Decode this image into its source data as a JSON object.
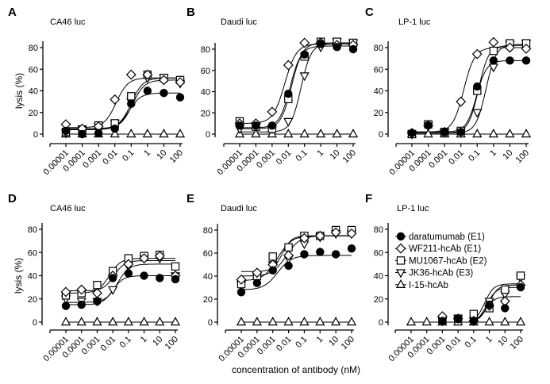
{
  "figure": {
    "x_axis_label": "concentration of antibody (nM)",
    "y_axis_label": "lysis (%)",
    "legend": [
      {
        "name": "daratumumab (E1)",
        "marker": "filled-circle"
      },
      {
        "name": "WF211-hcAb (E1)",
        "marker": "open-diamond"
      },
      {
        "name": "MU1067-hcAb (E2)",
        "marker": "open-square"
      },
      {
        "name": "JK36-hcAb (E3)",
        "marker": "open-triangle-down"
      },
      {
        "name": "I-15-hcAb",
        "marker": "open-triangle-up"
      }
    ],
    "colors": {
      "ink": "#000000",
      "fill": "#ffffff"
    }
  },
  "chart_data": [
    {
      "panel": "A",
      "title": "CA46 luc",
      "type": "scatter",
      "x_scale": "log",
      "ylim": [
        0,
        80
      ],
      "yticks": [
        0,
        20,
        40,
        60,
        80
      ],
      "x": [
        1e-05,
        0.0001,
        0.001,
        0.01,
        0.1,
        1,
        10,
        100
      ],
      "xtick_labels": [
        "0.00001",
        "0.0001",
        "0.001",
        "0.01",
        "0.1",
        "1",
        "10",
        "100"
      ],
      "series": [
        {
          "name": "daratumumab (E1)",
          "values": [
            3,
            0,
            1,
            5,
            28,
            40,
            38,
            34
          ],
          "fit": {
            "bottom": 4,
            "top": 38,
            "ec50": 0.07,
            "hill": 1.2
          }
        },
        {
          "name": "WF211-hcAb (E1)",
          "values": [
            9,
            5,
            7,
            32,
            55,
            55,
            50,
            48
          ],
          "fit": {
            "bottom": 6,
            "top": 52,
            "ec50": 0.012,
            "hill": 1.2
          }
        },
        {
          "name": "MU1067-hcAb (E2)",
          "values": [
            2,
            4,
            8,
            10,
            35,
            55,
            52,
            50
          ],
          "fit": {
            "bottom": 5,
            "top": 52,
            "ec50": 0.1,
            "hill": 1.2
          }
        },
        {
          "name": "JK36-hcAb (E3)",
          "values": [
            1,
            5,
            7,
            10,
            30,
            52,
            52,
            47
          ],
          "fit": {
            "bottom": 5,
            "top": 50,
            "ec50": 0.12,
            "hill": 1.2
          }
        },
        {
          "name": "I-15-hcAb",
          "values": [
            0,
            0,
            0,
            0,
            0,
            0,
            0,
            0
          ],
          "fit": {
            "bottom": 0,
            "top": 0,
            "ec50": 1,
            "hill": 1
          }
        }
      ]
    },
    {
      "panel": "B",
      "title": "Daudi luc",
      "type": "scatter",
      "x_scale": "log",
      "ylim": [
        0,
        80
      ],
      "yticks": [
        0,
        20,
        40,
        60,
        80
      ],
      "x": [
        1e-05,
        0.0001,
        0.001,
        0.01,
        0.1,
        1,
        10,
        100
      ],
      "xtick_labels": [
        "0.00001",
        "0.0001",
        "0.001",
        "0.01",
        "0.1",
        "1",
        "10",
        "100"
      ],
      "series": [
        {
          "name": "daratumumab (E1)",
          "values": [
            8,
            8,
            8,
            38,
            75,
            85,
            82,
            80
          ],
          "fit": {
            "bottom": 6,
            "top": 83,
            "ec50": 0.013,
            "hill": 1.3
          }
        },
        {
          "name": "WF211-hcAb (E1)",
          "values": [
            10,
            10,
            21,
            65,
            86,
            86,
            84,
            84
          ],
          "fit": {
            "bottom": 10,
            "top": 85,
            "ec50": 0.006,
            "hill": 1.2
          }
        },
        {
          "name": "MU1067-hcAb (E2)",
          "values": [
            12,
            7,
            5,
            33,
            73,
            87,
            87,
            86
          ],
          "fit": {
            "bottom": 5,
            "top": 86,
            "ec50": 0.016,
            "hill": 1.3
          }
        },
        {
          "name": "JK36-hcAb (E3)",
          "values": [
            5,
            8,
            5,
            12,
            55,
            82,
            87,
            86
          ],
          "fit": {
            "bottom": 2,
            "top": 85,
            "ec50": 0.06,
            "hill": 1.4
          }
        },
        {
          "name": "I-15-hcAb",
          "values": [
            0,
            0,
            0,
            0,
            0,
            0,
            0,
            0
          ],
          "fit": {
            "bottom": 0,
            "top": 0,
            "ec50": 1,
            "hill": 1
          }
        }
      ]
    },
    {
      "panel": "C",
      "title": "LP-1 luc",
      "type": "scatter",
      "x_scale": "log",
      "ylim": [
        0,
        80
      ],
      "yticks": [
        0,
        20,
        40,
        60,
        80
      ],
      "x": [
        1e-05,
        0.0001,
        0.001,
        0.01,
        0.1,
        1,
        10,
        100
      ],
      "xtick_labels": [
        "0.00001",
        "0.0001",
        "0.001",
        "0.01",
        "0.1",
        "1",
        "10",
        "100"
      ],
      "series": [
        {
          "name": "daratumumab (E1)",
          "values": [
            1,
            8,
            2,
            2,
            44,
            68,
            68,
            68
          ],
          "fit": {
            "bottom": 2,
            "top": 68,
            "ec50": 0.09,
            "hill": 1.4
          }
        },
        {
          "name": "WF211-hcAb (E1)",
          "values": [
            1,
            8,
            2,
            30,
            74,
            85,
            80,
            79
          ],
          "fit": {
            "bottom": 2,
            "top": 80,
            "ec50": 0.015,
            "hill": 1.3
          }
        },
        {
          "name": "MU1067-hcAb (E2)",
          "values": [
            0,
            9,
            2,
            3,
            40,
            77,
            84,
            84
          ],
          "fit": {
            "bottom": 1,
            "top": 82,
            "ec50": 0.12,
            "hill": 1.4
          }
        },
        {
          "name": "JK36-hcAb (E3)",
          "values": [
            0,
            8,
            2,
            2,
            20,
            62,
            83,
            84
          ],
          "fit": {
            "bottom": 1,
            "top": 83,
            "ec50": 0.35,
            "hill": 1.4
          }
        },
        {
          "name": "I-15-hcAb",
          "values": [
            0,
            0,
            0,
            0,
            0,
            0,
            0,
            0
          ],
          "fit": {
            "bottom": 0,
            "top": 0,
            "ec50": 1,
            "hill": 1
          }
        }
      ]
    },
    {
      "panel": "D",
      "title": "CA46 luc",
      "type": "scatter",
      "x_scale": "log",
      "ylim": [
        0,
        80
      ],
      "yticks": [
        0,
        20,
        40,
        60,
        80
      ],
      "x": [
        1e-05,
        0.0001,
        0.001,
        0.01,
        0.1,
        1,
        10,
        100
      ],
      "xtick_labels": [
        "0.00001",
        "0.0001",
        "0.001",
        "0.01",
        "0.1",
        "1",
        "10",
        "100"
      ],
      "series": [
        {
          "name": "daratumumab (E1)",
          "values": [
            14,
            15,
            18,
            38,
            42,
            40,
            38,
            37
          ],
          "fit": {
            "bottom": 15,
            "top": 40,
            "ec50": 0.01,
            "hill": 1.3
          }
        },
        {
          "name": "WF211-hcAb (E1)",
          "values": [
            26,
            28,
            25,
            40,
            50,
            55,
            57,
            40
          ],
          "fit": {
            "bottom": 27,
            "top": 53,
            "ec50": 0.012,
            "hill": 1.3
          }
        },
        {
          "name": "MU1067-hcAb (E2)",
          "values": [
            23,
            25,
            32,
            44,
            55,
            57,
            58,
            48
          ],
          "fit": {
            "bottom": 25,
            "top": 55,
            "ec50": 0.006,
            "hill": 1.2
          }
        },
        {
          "name": "JK36-hcAb (E3)",
          "values": [
            20,
            18,
            18,
            28,
            48,
            55,
            55,
            40
          ],
          "fit": {
            "bottom": 17,
            "top": 50,
            "ec50": 0.02,
            "hill": 1.2
          }
        },
        {
          "name": "I-15-hcAb",
          "values": [
            0,
            0,
            0,
            0,
            0,
            0,
            0,
            0
          ],
          "fit": {
            "bottom": 0,
            "top": 0,
            "ec50": 1,
            "hill": 1
          }
        }
      ]
    },
    {
      "panel": "E",
      "title": "Daudi luc",
      "type": "scatter",
      "x_scale": "log",
      "ylim": [
        0,
        80
      ],
      "yticks": [
        0,
        20,
        40,
        60,
        80
      ],
      "x": [
        1e-05,
        0.0001,
        0.001,
        0.01,
        0.1,
        1,
        10,
        100
      ],
      "xtick_labels": [
        "0.00001",
        "0.0001",
        "0.001",
        "0.01",
        "0.1",
        "1",
        "10",
        "100"
      ],
      "series": [
        {
          "name": "daratumumab (E1)",
          "values": [
            26,
            34,
            45,
            49,
            59,
            61,
            59,
            64
          ],
          "fit": {
            "bottom": 28,
            "top": 58,
            "ec50": 0.002,
            "hill": 1
          }
        },
        {
          "name": "WF211-hcAb (E1)",
          "values": [
            37,
            43,
            50,
            58,
            73,
            75,
            78,
            77
          ],
          "fit": {
            "bottom": 44,
            "top": 75,
            "ec50": 0.004,
            "hill": 1.5
          }
        },
        {
          "name": "MU1067-hcAb (E2)",
          "values": [
            33,
            40,
            57,
            65,
            75,
            75,
            80,
            80
          ],
          "fit": {
            "bottom": 36,
            "top": 75,
            "ec50": 0.002,
            "hill": 1
          }
        },
        {
          "name": "JK36-hcAb (E3)",
          "values": [
            33,
            38,
            50,
            55,
            68,
            74,
            77,
            77
          ],
          "fit": {
            "bottom": 40,
            "top": 75,
            "ec50": 0.007,
            "hill": 1
          }
        },
        {
          "name": "I-15-hcAb",
          "values": [
            0,
            0,
            0,
            0,
            0,
            0,
            0,
            0
          ],
          "fit": {
            "bottom": 0,
            "top": 0,
            "ec50": 1,
            "hill": 1
          }
        }
      ]
    },
    {
      "panel": "F",
      "title": "LP-1 luc",
      "type": "scatter",
      "x_scale": "log",
      "ylim": [
        0,
        80
      ],
      "yticks": [
        0,
        20,
        40,
        60,
        80
      ],
      "x": [
        1e-05,
        0.0001,
        0.001,
        0.01,
        0.1,
        1,
        10,
        100
      ],
      "xtick_labels": [
        "0.00001",
        "0.0001",
        "0.001",
        "0.01",
        "0.1",
        "1",
        "10",
        "100"
      ],
      "legend_position": "top-left",
      "series": [
        {
          "name": "daratumumab (E1)",
          "values": [
            null,
            null,
            1,
            3,
            1,
            15,
            12,
            30
          ],
          "fit": {
            "bottom": 0,
            "top": 22,
            "ec50": 0.6,
            "hill": 1.5,
            "from": 0.1
          }
        },
        {
          "name": "WF211-hcAb (E1)",
          "values": [
            null,
            null,
            5,
            3,
            1,
            14,
            18,
            32
          ],
          "fit": {
            "bottom": 0,
            "top": 30,
            "ec50": 0.7,
            "hill": 1.5,
            "from": 0.1
          }
        },
        {
          "name": "MU1067-hcAb (E2)",
          "values": [
            null,
            null,
            2,
            3,
            7,
            12,
            28,
            40
          ],
          "fit": {
            "bottom": 0,
            "top": 32,
            "ec50": 0.9,
            "hill": 1.5,
            "from": 0.1
          }
        },
        {
          "name": "JK36-hcAb (E3)",
          "values": [
            null,
            null,
            1,
            3,
            1,
            18,
            24,
            38
          ],
          "fit": {
            "bottom": 0,
            "top": 33,
            "ec50": 0.5,
            "hill": 1.5,
            "from": 0.1
          }
        },
        {
          "name": "I-15-hcAb",
          "values": [
            0,
            0,
            0,
            0,
            0,
            0,
            0,
            0
          ],
          "fit": {
            "bottom": 0,
            "top": 0,
            "ec50": 1,
            "hill": 1
          }
        }
      ]
    }
  ]
}
